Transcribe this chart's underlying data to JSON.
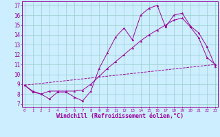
{
  "background_color": "#cceeff",
  "line_color": "#990099",
  "xlabel": "Windchill (Refroidissement éolien,°C)",
  "xlabel_fontsize": 6.0,
  "ylabel_ticks": [
    7,
    8,
    9,
    10,
    11,
    12,
    13,
    14,
    15,
    16,
    17
  ],
  "xlabel_ticks": [
    0,
    1,
    2,
    3,
    4,
    5,
    6,
    7,
    8,
    9,
    10,
    11,
    12,
    13,
    14,
    15,
    16,
    17,
    18,
    19,
    20,
    21,
    22,
    23
  ],
  "xlim": [
    -0.3,
    23.3
  ],
  "ylim": [
    6.7,
    17.4
  ],
  "series1_x": [
    0,
    1,
    2,
    3,
    4,
    5,
    6,
    7,
    8,
    9,
    10,
    11,
    12,
    13,
    14,
    15,
    16,
    17,
    18,
    19,
    20,
    21,
    22,
    23
  ],
  "series1_y": [
    8.9,
    8.3,
    8.0,
    7.5,
    8.2,
    8.2,
    7.7,
    7.3,
    8.3,
    10.6,
    12.2,
    13.8,
    14.7,
    13.5,
    16.0,
    16.7,
    17.0,
    14.8,
    16.0,
    16.2,
    14.9,
    14.2,
    12.8,
    10.8
  ],
  "series2_x": [
    0,
    1,
    2,
    3,
    4,
    5,
    6,
    7,
    8,
    9,
    10,
    11,
    12,
    13,
    14,
    15,
    16,
    17,
    18,
    19,
    20,
    21,
    22,
    23
  ],
  "series2_y": [
    8.9,
    8.2,
    8.0,
    8.3,
    8.3,
    8.3,
    8.3,
    8.4,
    9.0,
    9.8,
    10.6,
    11.3,
    12.0,
    12.7,
    13.4,
    14.0,
    14.5,
    15.0,
    15.5,
    15.7,
    14.8,
    13.7,
    11.7,
    11.0
  ],
  "series3_x": [
    0,
    23
  ],
  "series3_y": [
    8.9,
    11.0
  ],
  "grid_color": "#99cccc",
  "marker": "^",
  "marker_size": 2.0,
  "ytick_fontsize": 5.5,
  "xtick_fontsize": 4.2
}
